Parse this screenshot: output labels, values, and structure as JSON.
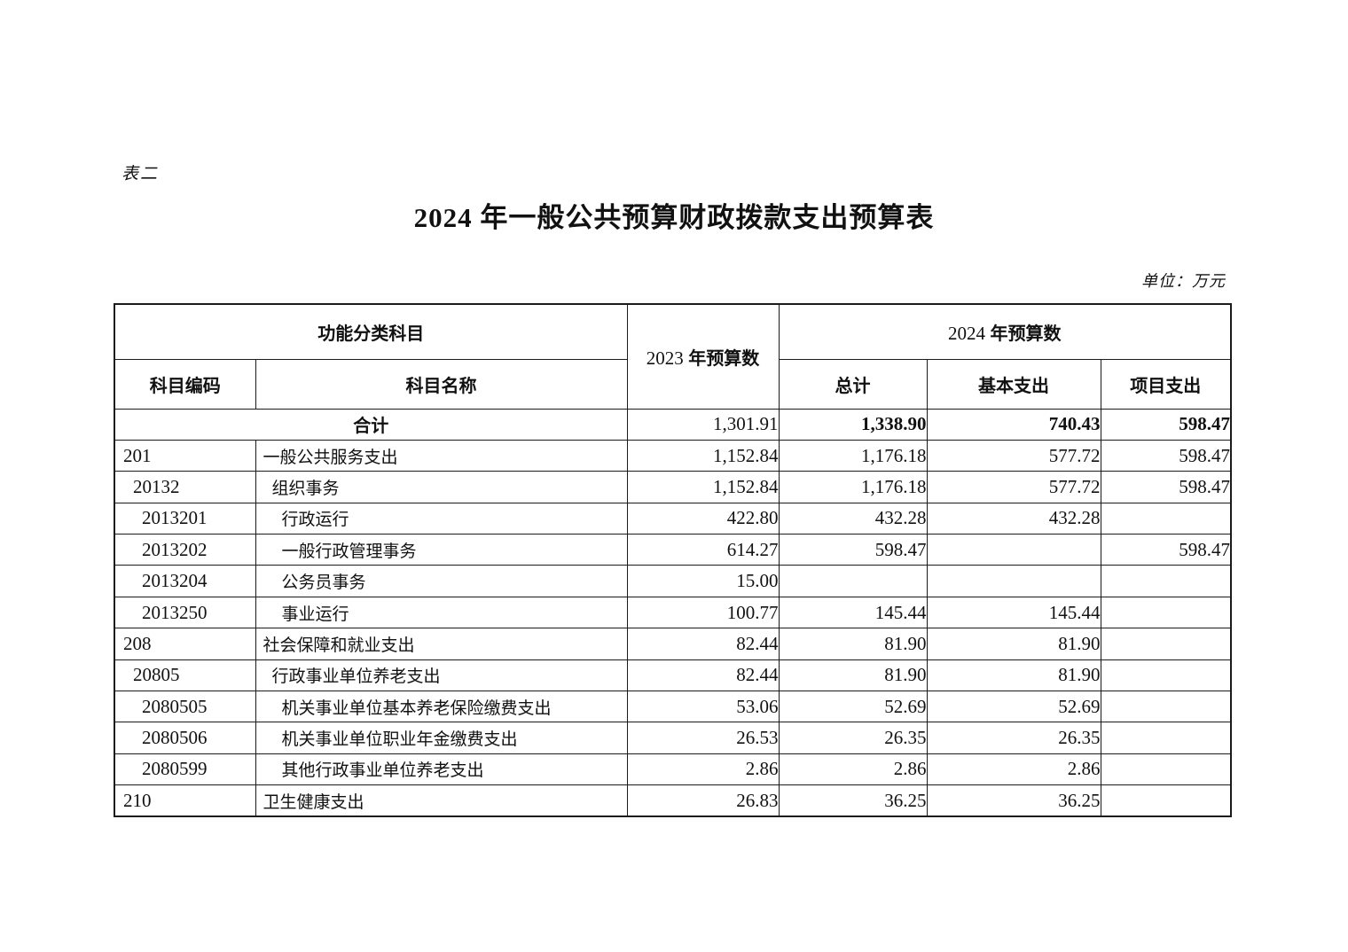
{
  "page": {
    "sheet_label": "表二",
    "title": "2024 年一般公共预算财政拨款支出预算表",
    "unit_note": "单位：万元"
  },
  "table": {
    "header": {
      "function_category": "功能分类科目",
      "subject_code": "科目编码",
      "subject_name": "科目名称",
      "budget_2023": {
        "year": "2023",
        "label": "年预算数"
      },
      "budget_2024": {
        "year": "2024",
        "label": "年预算数"
      },
      "total": "总计",
      "basic": "基本支出",
      "project": "项目支出"
    },
    "rows": [
      {
        "total_row": true,
        "code": "",
        "name": "合计",
        "level": 0,
        "v2023": "1,301.91",
        "total": "1,338.90",
        "basic": "740.43",
        "project": "598.47"
      },
      {
        "total_row": false,
        "code": "201",
        "name": "一般公共服务支出",
        "level": 1,
        "v2023": "1,152.84",
        "total": "1,176.18",
        "basic": "577.72",
        "project": "598.47"
      },
      {
        "total_row": false,
        "code": "20132",
        "name": "组织事务",
        "level": 2,
        "v2023": "1,152.84",
        "total": "1,176.18",
        "basic": "577.72",
        "project": "598.47"
      },
      {
        "total_row": false,
        "code": "2013201",
        "name": "行政运行",
        "level": 3,
        "v2023": "422.80",
        "total": "432.28",
        "basic": "432.28",
        "project": ""
      },
      {
        "total_row": false,
        "code": "2013202",
        "name": "一般行政管理事务",
        "level": 3,
        "v2023": "614.27",
        "total": "598.47",
        "basic": "",
        "project": "598.47"
      },
      {
        "total_row": false,
        "code": "2013204",
        "name": "公务员事务",
        "level": 3,
        "v2023": "15.00",
        "total": "",
        "basic": "",
        "project": ""
      },
      {
        "total_row": false,
        "code": "2013250",
        "name": "事业运行",
        "level": 3,
        "v2023": "100.77",
        "total": "145.44",
        "basic": "145.44",
        "project": ""
      },
      {
        "total_row": false,
        "code": "208",
        "name": "社会保障和就业支出",
        "level": 1,
        "v2023": "82.44",
        "total": "81.90",
        "basic": "81.90",
        "project": ""
      },
      {
        "total_row": false,
        "code": "20805",
        "name": "行政事业单位养老支出",
        "level": 2,
        "v2023": "82.44",
        "total": "81.90",
        "basic": "81.90",
        "project": ""
      },
      {
        "total_row": false,
        "code": "2080505",
        "name": "机关事业单位基本养老保险缴费支出",
        "level": 3,
        "v2023": "53.06",
        "total": "52.69",
        "basic": "52.69",
        "project": ""
      },
      {
        "total_row": false,
        "code": "2080506",
        "name": "机关事业单位职业年金缴费支出",
        "level": 3,
        "v2023": "26.53",
        "total": "26.35",
        "basic": "26.35",
        "project": ""
      },
      {
        "total_row": false,
        "code": "2080599",
        "name": "其他行政事业单位养老支出",
        "level": 3,
        "v2023": "2.86",
        "total": "2.86",
        "basic": "2.86",
        "project": ""
      },
      {
        "total_row": false,
        "code": "210",
        "name": "卫生健康支出",
        "level": 1,
        "v2023": "26.83",
        "total": "36.25",
        "basic": "36.25",
        "project": ""
      }
    ]
  }
}
